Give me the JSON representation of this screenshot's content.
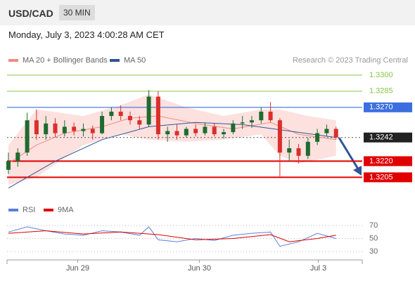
{
  "header": {
    "symbol": "USD/CAD",
    "interval": "30 MIN",
    "date": "Monday, July 3, 2023 4:00:28 AM CET"
  },
  "chart_data": [
    {
      "type": "candlestick",
      "legend": [
        {
          "name": "MA 20 + Bollinger Bands",
          "color": "#f28b82"
        },
        {
          "name": "MA 50",
          "color": "#2f5597"
        }
      ],
      "source": "Research © 2023 Trading Central",
      "xlim": [
        -0.15,
        37.8
      ],
      "ylim": [
        1.3187,
        1.3311
      ],
      "xticks": [
        {
          "value": 7.4,
          "label": "Jun 29"
        },
        {
          "value": 20.4,
          "label": "Jun 30"
        },
        {
          "value": 33.1,
          "label": "Jul 3"
        }
      ],
      "open": [
        1.3212,
        1.322,
        1.3228,
        1.3258,
        1.3245,
        1.3255,
        1.3246,
        1.3252,
        1.3248,
        1.325,
        1.3246,
        1.3262,
        1.3266,
        1.3262,
        1.3258,
        1.3254,
        1.328,
        1.3245,
        1.3248,
        1.3244,
        1.325,
        1.3246,
        1.3252,
        1.3245,
        1.3247,
        1.3255,
        1.3256,
        1.3258,
        1.3266,
        1.3258,
        1.3228,
        1.3232,
        1.3225,
        1.3238,
        1.3246,
        1.325
      ],
      "high": [
        1.3228,
        1.3232,
        1.3265,
        1.3268,
        1.3262,
        1.326,
        1.3258,
        1.3256,
        1.3255,
        1.3253,
        1.3266,
        1.327,
        1.3272,
        1.3266,
        1.3262,
        1.3286,
        1.3285,
        1.3252,
        1.3254,
        1.3252,
        1.3254,
        1.3256,
        1.3255,
        1.325,
        1.3258,
        1.3262,
        1.3262,
        1.327,
        1.3275,
        1.326,
        1.324,
        1.3236,
        1.3242,
        1.325,
        1.3254,
        1.3252
      ],
      "low": [
        1.3208,
        1.3215,
        1.3225,
        1.324,
        1.324,
        1.3242,
        1.3243,
        1.3244,
        1.3243,
        1.324,
        1.3245,
        1.3258,
        1.3258,
        1.3254,
        1.325,
        1.3252,
        1.324,
        1.3238,
        1.324,
        1.3242,
        1.3243,
        1.3244,
        1.3243,
        1.3241,
        1.3245,
        1.325,
        1.3251,
        1.3255,
        1.3256,
        1.3206,
        1.322,
        1.3218,
        1.3222,
        1.3235,
        1.3243,
        1.324
      ],
      "close": [
        1.322,
        1.3228,
        1.3258,
        1.3245,
        1.3255,
        1.3246,
        1.3252,
        1.3248,
        1.325,
        1.3246,
        1.3262,
        1.3266,
        1.3262,
        1.3258,
        1.3254,
        1.328,
        1.3245,
        1.3248,
        1.3244,
        1.325,
        1.3246,
        1.3252,
        1.3245,
        1.3247,
        1.3255,
        1.3256,
        1.3258,
        1.3266,
        1.3258,
        1.3228,
        1.3232,
        1.3225,
        1.3238,
        1.3246,
        1.325,
        1.3242
      ],
      "up_color": "#1e6b2e",
      "down_color": "#d9302a",
      "band": {
        "color": "#fbd9d7",
        "x_upper": [
          0,
          3,
          8,
          12,
          15,
          19,
          23,
          27,
          29,
          32,
          35
        ],
        "upper": [
          1.3235,
          1.3268,
          1.3262,
          1.3272,
          1.3282,
          1.327,
          1.3262,
          1.3268,
          1.3268,
          1.3262,
          1.3258
        ],
        "x_lower": [
          0,
          3,
          8,
          12,
          15,
          19,
          23,
          27,
          29,
          31,
          35
        ],
        "lower": [
          1.3198,
          1.3205,
          1.3235,
          1.3245,
          1.324,
          1.3238,
          1.324,
          1.3245,
          1.3225,
          1.3218,
          1.3225
        ]
      },
      "series": [
        {
          "name": "MA 20",
          "color": "#f28b82",
          "x": [
            0,
            3,
            6,
            10,
            13,
            16,
            20,
            24,
            28,
            31,
            35
          ],
          "values": [
            1.3218,
            1.3235,
            1.3246,
            1.3252,
            1.326,
            1.3262,
            1.3255,
            1.325,
            1.3256,
            1.3245,
            1.324
          ]
        },
        {
          "name": "MA 50",
          "color": "#2f5597",
          "x": [
            0,
            5,
            10,
            15,
            20,
            25,
            30,
            35
          ],
          "values": [
            1.3195,
            1.322,
            1.324,
            1.3252,
            1.3256,
            1.3254,
            1.3248,
            1.3242
          ]
        }
      ],
      "levels": [
        {
          "value": 1.33,
          "label": "1.3300",
          "color": "#8bc34a",
          "box": false,
          "line_style": "solid"
        },
        {
          "value": 1.3285,
          "label": "1.3285",
          "color": "#8bc34a",
          "box": false,
          "line_style": "solid"
        },
        {
          "value": 1.327,
          "label": "1.3270",
          "color": "#3b6fe0",
          "box": true,
          "line_style": "solid"
        },
        {
          "value": 1.3242,
          "label": "1.3242",
          "color": "#222222",
          "box": true,
          "line_style": "dotted"
        },
        {
          "value": 1.322,
          "label": "1.3220",
          "color": "#e00000",
          "box": true,
          "line_style": "solid"
        },
        {
          "value": 1.3205,
          "label": "1.3205",
          "color": "#e00000",
          "box": true,
          "line_style": "solid"
        }
      ]
    },
    {
      "type": "line",
      "xlim": [
        -0.15,
        37.8
      ],
      "ylim": [
        17,
        82
      ],
      "yticks": [
        30,
        50,
        70
      ],
      "series": [
        {
          "name": "RSI",
          "color": "#5b7fde",
          "x": [
            0,
            2,
            4,
            6,
            8,
            10,
            12,
            14,
            15,
            16,
            18,
            20,
            22,
            24,
            26,
            28,
            29,
            31,
            33,
            35
          ],
          "values": [
            60,
            68,
            62,
            57,
            55,
            62,
            60,
            55,
            68,
            48,
            45,
            50,
            47,
            55,
            58,
            60,
            38,
            45,
            58,
            50
          ]
        },
        {
          "name": "9MA",
          "color": "#e00000",
          "x": [
            0,
            4,
            8,
            12,
            16,
            20,
            24,
            28,
            30,
            33,
            35
          ],
          "values": [
            58,
            62,
            57,
            60,
            56,
            48,
            50,
            56,
            45,
            50,
            55
          ]
        }
      ]
    }
  ]
}
